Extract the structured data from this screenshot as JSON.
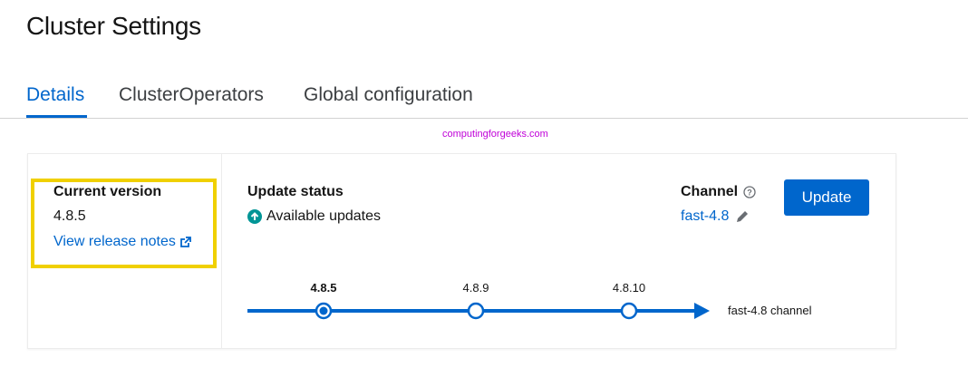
{
  "page_title": "Cluster Settings",
  "tabs": [
    {
      "label": "Details",
      "active": true
    },
    {
      "label": "ClusterOperators"
    },
    {
      "label": "Global configuration"
    }
  ],
  "watermark": "computingforgeeks.com",
  "current_version": {
    "label": "Current version",
    "value": "4.8.5",
    "release_notes_link": "View release notes"
  },
  "update_status": {
    "label": "Update status",
    "status": "Available updates",
    "icon": "arrow-circle-up-icon",
    "icon_color": "#009596"
  },
  "channel": {
    "label": "Channel",
    "value": "fast-4.8"
  },
  "update_button": "Update",
  "timeline": {
    "versions": [
      {
        "label": "4.8.5",
        "current": true
      },
      {
        "label": "4.8.9"
      },
      {
        "label": "4.8.10"
      }
    ],
    "channel_label": "fast-4.8 channel",
    "color": "#0066cc"
  },
  "colors": {
    "accent": "#0066cc",
    "highlight": "#f0d000"
  }
}
